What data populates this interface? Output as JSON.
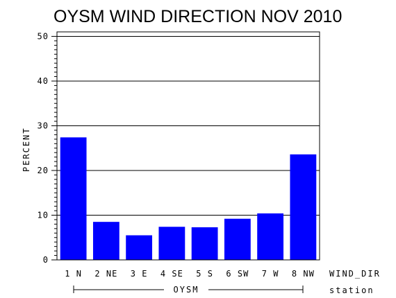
{
  "chart_data": {
    "type": "bar",
    "title": "OYSM WIND DIRECTION NOV 2010",
    "ylabel": "PERCENT",
    "xlabel": "WIND_DIR",
    "group_label": "OYSM",
    "group_axis_label": "station",
    "categories": [
      "1 N",
      "2 NE",
      "3 E",
      "4 SE",
      "5 S",
      "6 SW",
      "7 W",
      "8 NW"
    ],
    "values": [
      27.4,
      8.5,
      5.5,
      7.4,
      7.3,
      9.2,
      10.4,
      23.6
    ],
    "ylim": [
      0,
      51
    ],
    "yticks": [
      0,
      10,
      20,
      30,
      40,
      50
    ],
    "grid": true,
    "bar_color": "#0000ff"
  }
}
